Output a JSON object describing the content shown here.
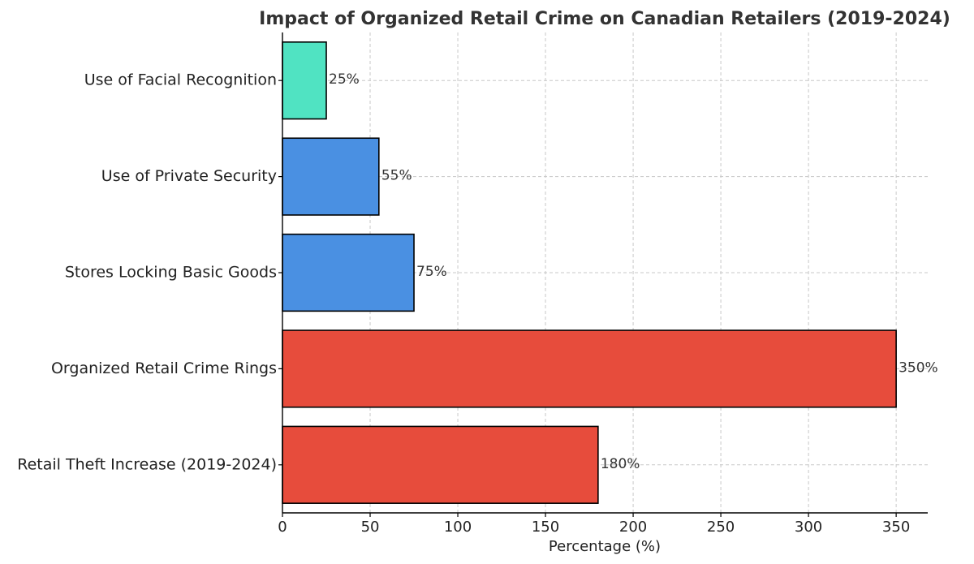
{
  "chart_data": {
    "type": "bar",
    "orientation": "horizontal",
    "title": "Impact of Organized Retail Crime on Canadian Retailers (2019-2024)",
    "xlabel": "Percentage (%)",
    "ylabel": "",
    "xlim": [
      0,
      368
    ],
    "x_ticks": [
      0,
      50,
      100,
      150,
      200,
      250,
      300,
      350
    ],
    "x_tick_labels": [
      "0",
      "50",
      "100",
      "150",
      "200",
      "250",
      "300",
      "350"
    ],
    "grid": true,
    "categories": [
      "Retail Theft Increase (2019-2024)",
      "Organized Retail Crime Rings",
      "Stores Locking Basic Goods",
      "Use of Private Security",
      "Use of Facial Recognition"
    ],
    "values": [
      180,
      350,
      75,
      55,
      25
    ],
    "value_labels": [
      "180%",
      "350%",
      "75%",
      "55%",
      "25%"
    ],
    "colors": [
      "#e74c3c",
      "#e74c3c",
      "#4a90e2",
      "#4a90e2",
      "#50e3c2"
    ]
  }
}
